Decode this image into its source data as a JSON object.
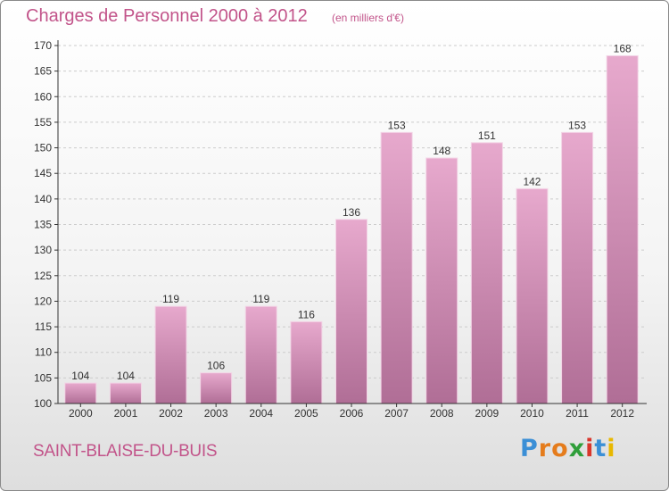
{
  "colors": {
    "title": "#c2548a",
    "bar_top": "#e7a9cd",
    "bar_bottom": "#b06e96",
    "axis": "#333333",
    "grid": "#cccccc"
  },
  "header": {
    "title": "Charges de Personnel 2000 à 2012",
    "subtitle": "(en milliers d'€)"
  },
  "footer": {
    "commune": "SAINT-BLAISE-DU-BUIS",
    "brand_letters": [
      {
        "ch": "P",
        "color": "#3b8fd6"
      },
      {
        "ch": "r",
        "color": "#e57c1c"
      },
      {
        "ch": "o",
        "color": "#e57c1c"
      },
      {
        "ch": "x",
        "color": "#2f9e3a"
      },
      {
        "ch": "i",
        "color": "#d9362c"
      },
      {
        "ch": "t",
        "color": "#3b8fd6"
      },
      {
        "ch": "i",
        "color": "#e8b800"
      }
    ]
  },
  "chart_data": {
    "type": "bar",
    "title": "Charges de Personnel 2000 à 2012",
    "subtitle": "(en milliers d'€)",
    "categories": [
      "2000",
      "2001",
      "2002",
      "2003",
      "2004",
      "2005",
      "2006",
      "2007",
      "2008",
      "2009",
      "2010",
      "2011",
      "2012"
    ],
    "values": [
      104,
      104,
      119,
      106,
      119,
      116,
      136,
      153,
      148,
      151,
      142,
      153,
      168
    ],
    "ylim": [
      100,
      170
    ],
    "yticks": [
      100,
      105,
      110,
      115,
      120,
      125,
      130,
      135,
      140,
      145,
      150,
      155,
      160,
      165,
      170
    ],
    "grid": true,
    "data_labels": true
  }
}
